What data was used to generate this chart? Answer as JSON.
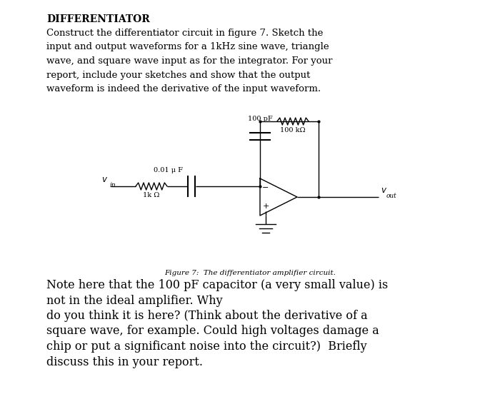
{
  "bg_color": "#ffffff",
  "title_text": "DIFFERENTIATOR",
  "para1_lines": [
    "Construct the differentiator circuit in figure 7. Sketch the",
    "input and output waveforms for a 1kHz sine wave, triangle",
    "wave, and square wave input as for the integrator. For your",
    "report, include your sketches and show that the output",
    "waveform is indeed the derivative of the input waveform."
  ],
  "caption": "Figure 7:  The differentiator amplifier circuit.",
  "para2_lines": [
    "Note here that the 100 pF capacitor (a very small value) is",
    "not in the ideal amplifier. Why",
    "do you think it is here? (Think about the derivative of a",
    "square wave, for example. Could high voltages damage a",
    "chip or put a significant noise into the circuit?)  Briefly",
    "discuss this in your report."
  ],
  "label_100pF": "100 pF",
  "label_100kohm": "100 kΩ",
  "label_001uF": "0.01 μ F",
  "label_1kohm": "1k Ω"
}
